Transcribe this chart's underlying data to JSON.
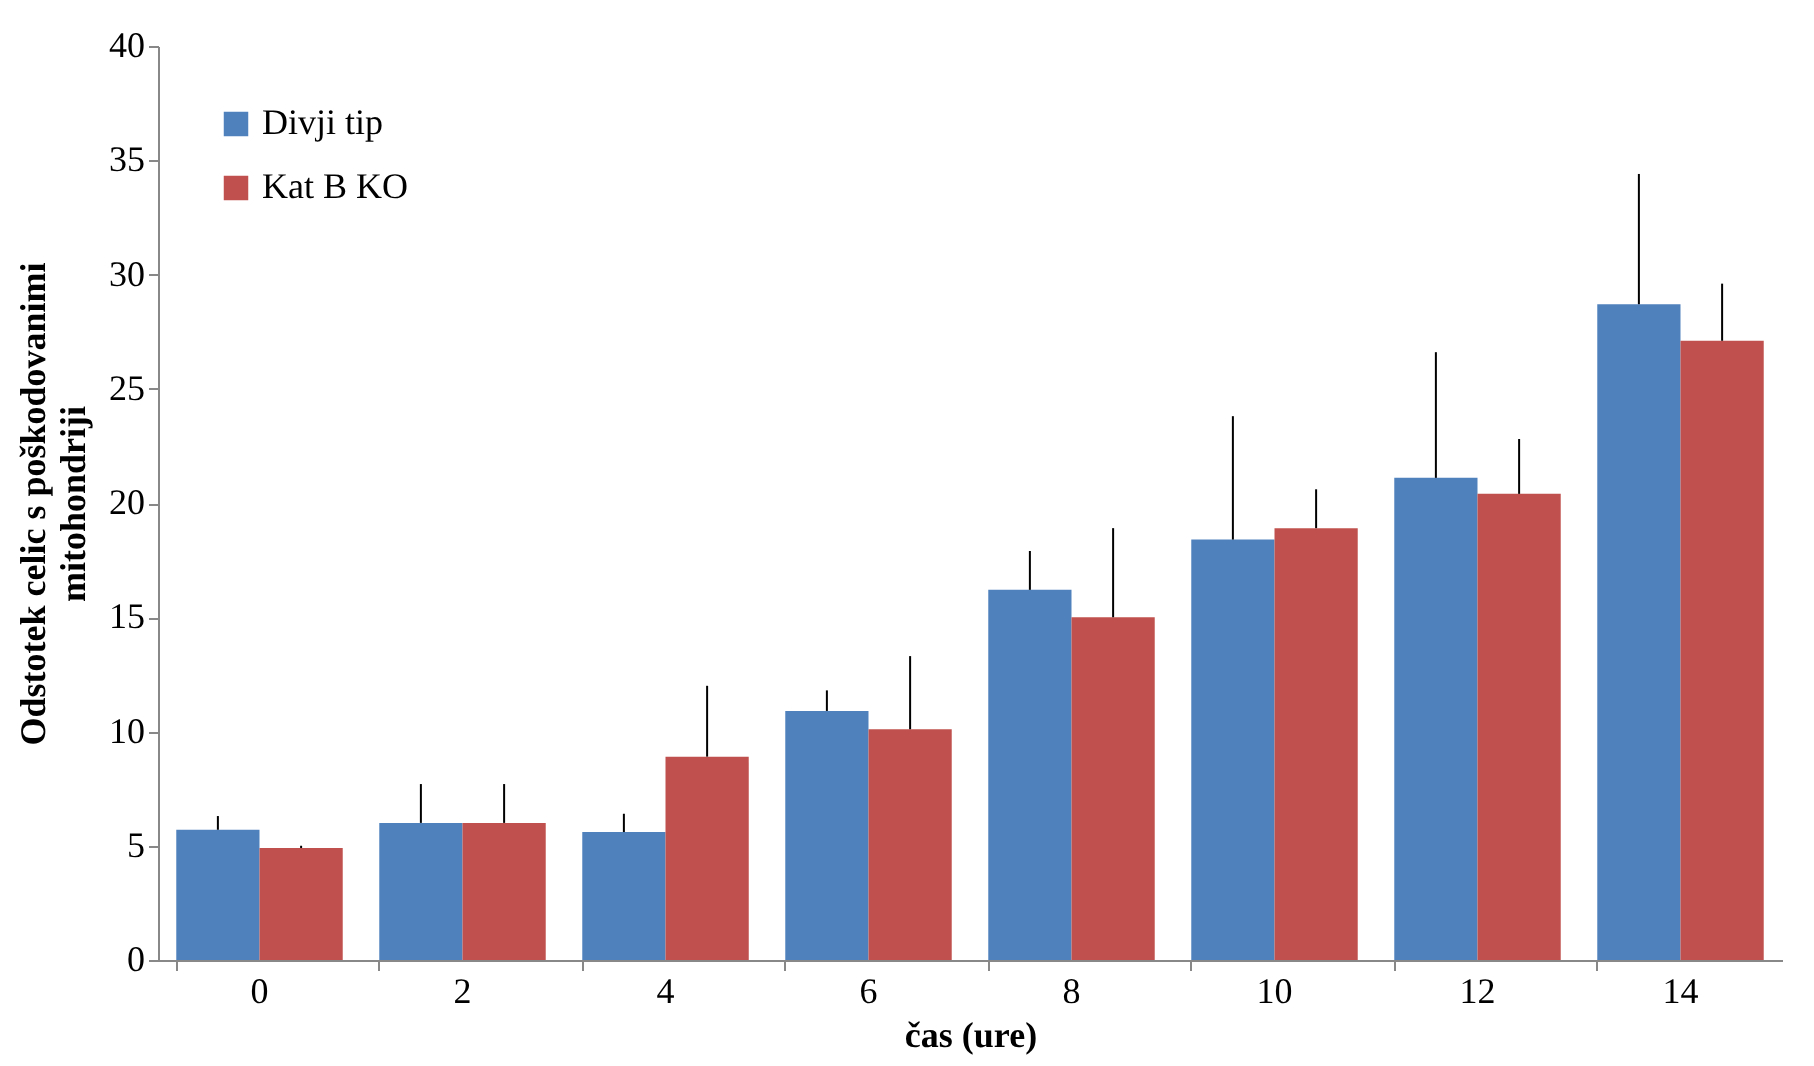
{
  "chart_data": {
    "type": "bar",
    "xlabel": "čas (ure)",
    "ylabel": "Odstotek celic s poškodovanimi mitohondriji",
    "categories": [
      "0",
      "2",
      "4",
      "6",
      "8",
      "10",
      "12",
      "14"
    ],
    "series": [
      {
        "name": "Divji tip",
        "color": "#4f81bd",
        "values": [
          5.7,
          6.0,
          5.6,
          10.9,
          16.2,
          18.4,
          21.1,
          28.7
        ],
        "errors": [
          [
            5.7,
            6.3
          ],
          [
            6.0,
            7.7
          ],
          [
            5.6,
            6.4
          ],
          [
            10.9,
            11.8
          ],
          [
            16.2,
            17.9
          ],
          [
            18.4,
            23.8
          ],
          [
            21.1,
            26.6
          ],
          [
            28.7,
            34.4
          ]
        ]
      },
      {
        "name": "Kat B KO",
        "color": "#c0504d",
        "values": [
          4.9,
          6.0,
          8.9,
          10.1,
          15.0,
          18.9,
          20.4,
          27.1
        ],
        "errors": [
          [
            4.9,
            5.0
          ],
          [
            6.0,
            7.7
          ],
          [
            8.9,
            12.0
          ],
          [
            10.1,
            13.3
          ],
          [
            15.0,
            18.9
          ],
          [
            18.9,
            20.6
          ],
          [
            20.4,
            22.8
          ],
          [
            27.1,
            29.6
          ]
        ]
      }
    ],
    "ylim": [
      0,
      40
    ],
    "yticks": [
      0,
      5,
      10,
      15,
      20,
      25,
      30,
      35,
      40
    ],
    "grid": false,
    "legend": "top left"
  }
}
